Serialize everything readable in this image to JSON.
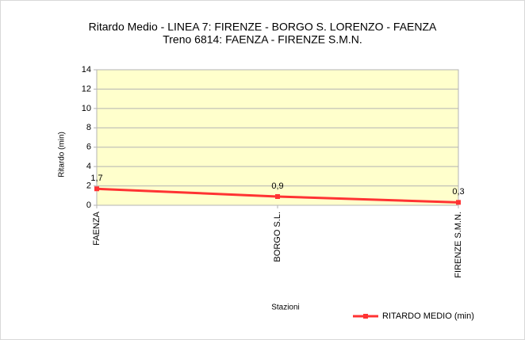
{
  "chart_data": {
    "type": "line",
    "title": "Ritardo Medio - LINEA 7: FIRENZE - BORGO S. LORENZO - FAENZA",
    "subtitle": "Treno 6814: FAENZA - FIRENZE S.M.N.",
    "x_label": "Stazioni",
    "y_label": "Ritardo (min)",
    "categories": [
      "FAENZA",
      "BORGO S.L.",
      "FIRENZE S.M.N."
    ],
    "series": [
      {
        "name": "RITARDO MEDIO (min)",
        "color": "#ff3333",
        "values": [
          1.7,
          0.9,
          0.3
        ],
        "value_labels": [
          "1,7",
          "0,9",
          "0,3"
        ]
      }
    ],
    "ylim": [
      0,
      14
    ],
    "yticks": [
      0,
      2,
      4,
      6,
      8,
      10,
      12,
      14
    ],
    "grid": true,
    "plot_background": "#ffffcc",
    "legend": "bottom-right"
  }
}
